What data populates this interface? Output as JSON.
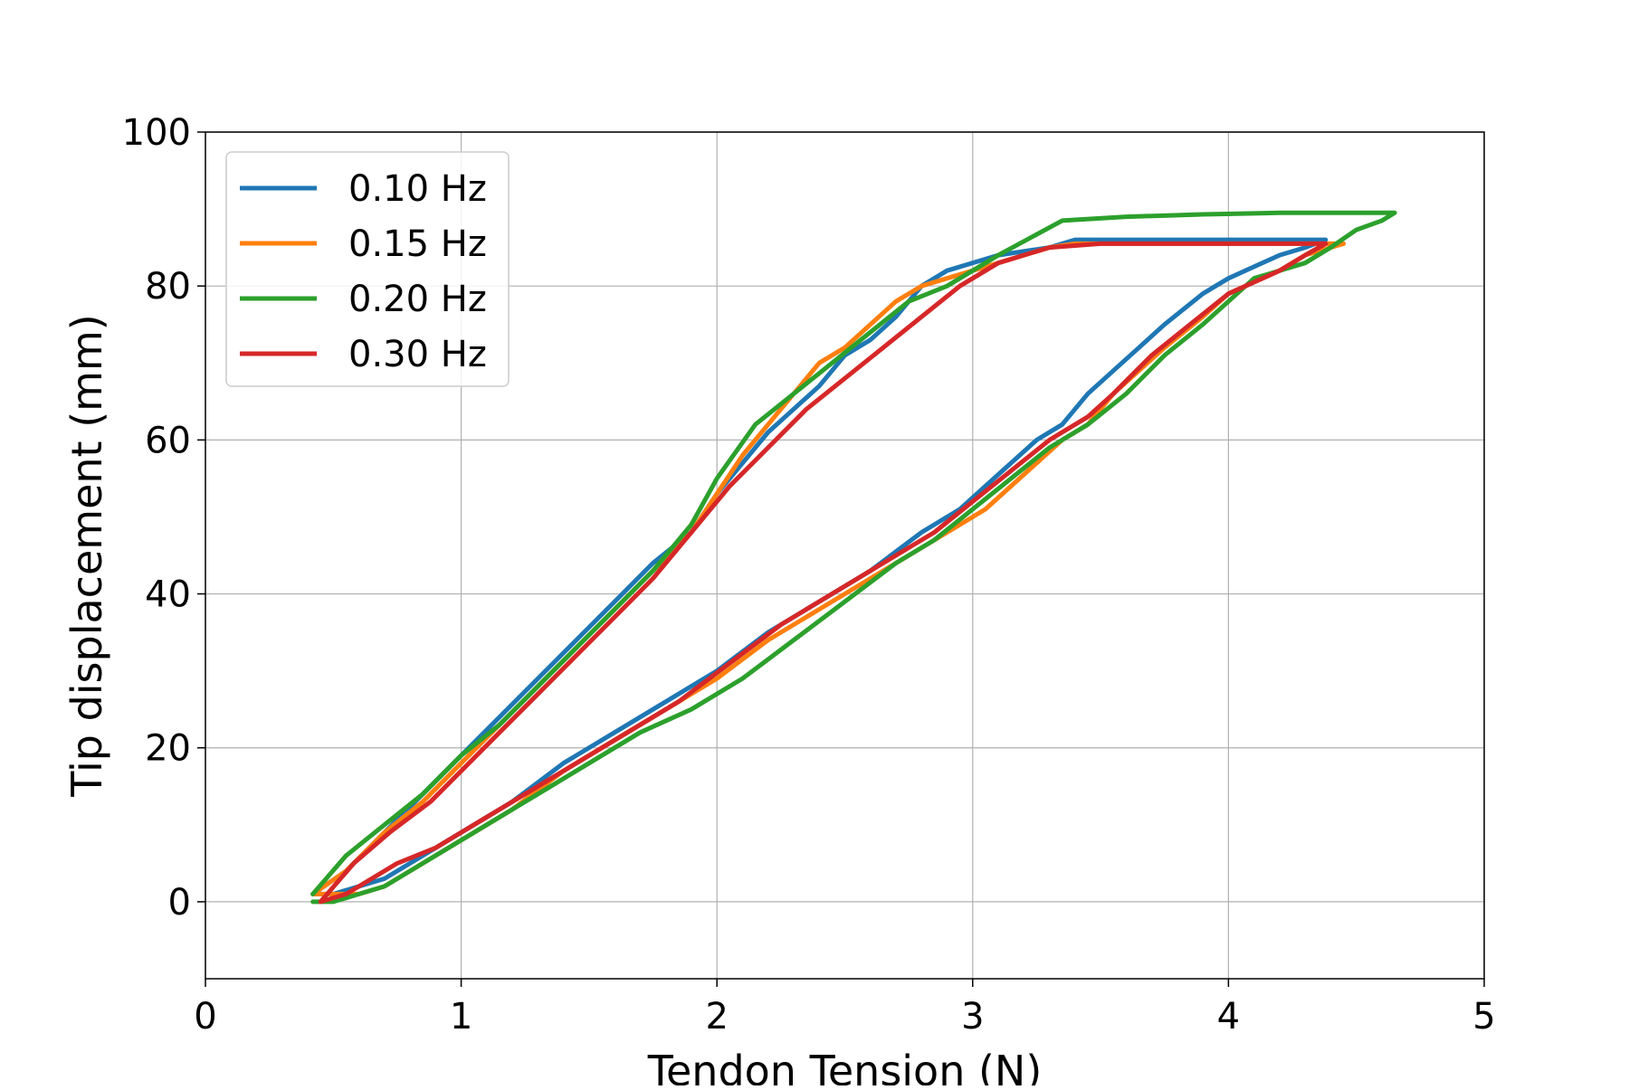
{
  "chart_data": {
    "type": "line",
    "title": "",
    "xlabel": "Tendon Tension (N)",
    "ylabel": "Tip displacement (mm)",
    "xlim": [
      0,
      5
    ],
    "ylim": [
      -10,
      100
    ],
    "xticks": [
      0,
      1,
      2,
      3,
      4,
      5
    ],
    "yticks": [
      0,
      20,
      40,
      60,
      80,
      100
    ],
    "xtick_labels": [
      "0",
      "1",
      "2",
      "3",
      "4",
      "5"
    ],
    "ytick_labels": [
      "0",
      "20",
      "40",
      "60",
      "80",
      "100"
    ],
    "grid": true,
    "legend_position": "top-left",
    "series": [
      {
        "name": "0.10 Hz",
        "color": "#1f77b4",
        "x": [
          0.42,
          0.55,
          0.7,
          0.85,
          1.0,
          1.15,
          1.3,
          1.45,
          1.6,
          1.75,
          1.9,
          2.0,
          2.1,
          2.2,
          2.3,
          2.4,
          2.5,
          2.6,
          2.7,
          2.8,
          2.9,
          3.1,
          3.3,
          3.4,
          3.6,
          3.8,
          4.0,
          4.2,
          4.38,
          4.3,
          4.2,
          4.0,
          3.9,
          3.75,
          3.65,
          3.55,
          3.45,
          3.35,
          3.25,
          3.15,
          3.05,
          2.95,
          2.8,
          2.6,
          2.4,
          2.2,
          2.0,
          1.8,
          1.6,
          1.4,
          1.2,
          1.0,
          0.85,
          0.7,
          0.6,
          0.5,
          0.42
        ],
        "y": [
          1,
          4,
          9,
          14,
          19,
          24,
          29,
          34,
          39,
          44,
          48,
          53,
          57,
          61,
          64,
          67,
          71,
          73,
          76,
          80,
          82,
          84,
          85,
          86,
          86,
          86,
          86,
          86,
          86,
          85,
          84,
          81,
          79,
          75,
          72,
          69,
          66,
          62,
          60,
          57,
          54,
          51,
          48,
          43,
          39,
          35,
          30,
          26,
          22,
          18,
          13,
          9,
          6,
          3,
          2,
          1,
          1
        ]
      },
      {
        "name": "0.15 Hz",
        "color": "#ff7f0e",
        "x": [
          0.42,
          0.55,
          0.7,
          0.85,
          1.0,
          1.15,
          1.3,
          1.45,
          1.6,
          1.75,
          1.9,
          2.0,
          2.1,
          2.2,
          2.3,
          2.4,
          2.5,
          2.6,
          2.7,
          2.8,
          2.9,
          3.1,
          3.3,
          3.4,
          3.6,
          3.8,
          4.0,
          4.2,
          4.45,
          4.3,
          4.2,
          4.0,
          3.9,
          3.75,
          3.65,
          3.55,
          3.45,
          3.35,
          3.25,
          3.15,
          3.05,
          2.95,
          2.8,
          2.6,
          2.4,
          2.2,
          2.0,
          1.8,
          1.6,
          1.4,
          1.2,
          1.0,
          0.85,
          0.7,
          0.6,
          0.5,
          0.42
        ],
        "y": [
          1,
          4,
          9,
          13,
          18,
          23,
          28,
          33,
          38,
          43,
          48,
          53,
          58,
          62,
          66,
          70,
          72,
          75,
          78,
          80,
          81,
          83,
          85,
          85.5,
          85.5,
          85.5,
          85.5,
          85.5,
          85.5,
          84,
          82,
          79,
          76,
          72,
          69,
          66,
          62,
          60,
          57,
          54,
          51,
          49,
          46,
          42,
          38,
          34,
          29,
          25,
          21,
          17,
          12,
          8,
          5,
          2,
          1,
          1,
          1
        ]
      },
      {
        "name": "0.20 Hz",
        "color": "#2ca02c",
        "x": [
          0.42,
          0.55,
          0.7,
          0.85,
          1.0,
          1.15,
          1.3,
          1.45,
          1.6,
          1.75,
          1.9,
          2.0,
          2.15,
          2.3,
          2.45,
          2.6,
          2.75,
          2.9,
          3.1,
          3.35,
          3.6,
          3.9,
          4.2,
          4.5,
          4.65,
          4.6,
          4.5,
          4.4,
          4.3,
          4.1,
          3.9,
          3.75,
          3.6,
          3.45,
          3.3,
          3.15,
          3.0,
          2.85,
          2.7,
          2.5,
          2.3,
          2.1,
          1.9,
          1.7,
          1.5,
          1.3,
          1.1,
          0.95,
          0.8,
          0.7,
          0.6,
          0.5,
          0.42
        ],
        "y": [
          1,
          6,
          10,
          14,
          19,
          23,
          28,
          33,
          38,
          43,
          49,
          55,
          62,
          66,
          70,
          74,
          78,
          80,
          84,
          88.5,
          89,
          89.3,
          89.5,
          89.5,
          89.5,
          88.5,
          87.3,
          85,
          83,
          81,
          75,
          71,
          66,
          62,
          59,
          55,
          51,
          47,
          44,
          39,
          34,
          29,
          25,
          22,
          18,
          14,
          10,
          7,
          4,
          2,
          1,
          0,
          0
        ]
      },
      {
        "name": "0.30 Hz",
        "color": "#d62728",
        "x": [
          0.45,
          0.58,
          0.72,
          0.88,
          1.0,
          1.15,
          1.3,
          1.45,
          1.6,
          1.75,
          1.9,
          2.05,
          2.2,
          2.35,
          2.5,
          2.65,
          2.8,
          2.95,
          3.1,
          3.3,
          3.5,
          3.8,
          4.1,
          4.38,
          4.3,
          4.2,
          4.0,
          3.85,
          3.7,
          3.55,
          3.45,
          3.3,
          3.15,
          3.0,
          2.85,
          2.65,
          2.45,
          2.25,
          2.05,
          1.85,
          1.65,
          1.45,
          1.25,
          1.05,
          0.9,
          0.75,
          0.65,
          0.55,
          0.45
        ],
        "y": [
          0,
          5,
          9,
          13,
          17,
          22,
          27,
          32,
          37,
          42,
          48,
          54,
          59,
          64,
          68,
          72,
          76,
          80,
          83,
          85,
          85.5,
          85.5,
          85.5,
          85.5,
          84,
          82,
          79,
          75,
          71,
          66,
          63,
          60,
          56,
          52,
          48,
          44,
          40,
          36,
          31,
          26,
          22,
          18,
          14,
          10,
          7,
          5,
          3,
          1,
          0
        ]
      }
    ]
  }
}
